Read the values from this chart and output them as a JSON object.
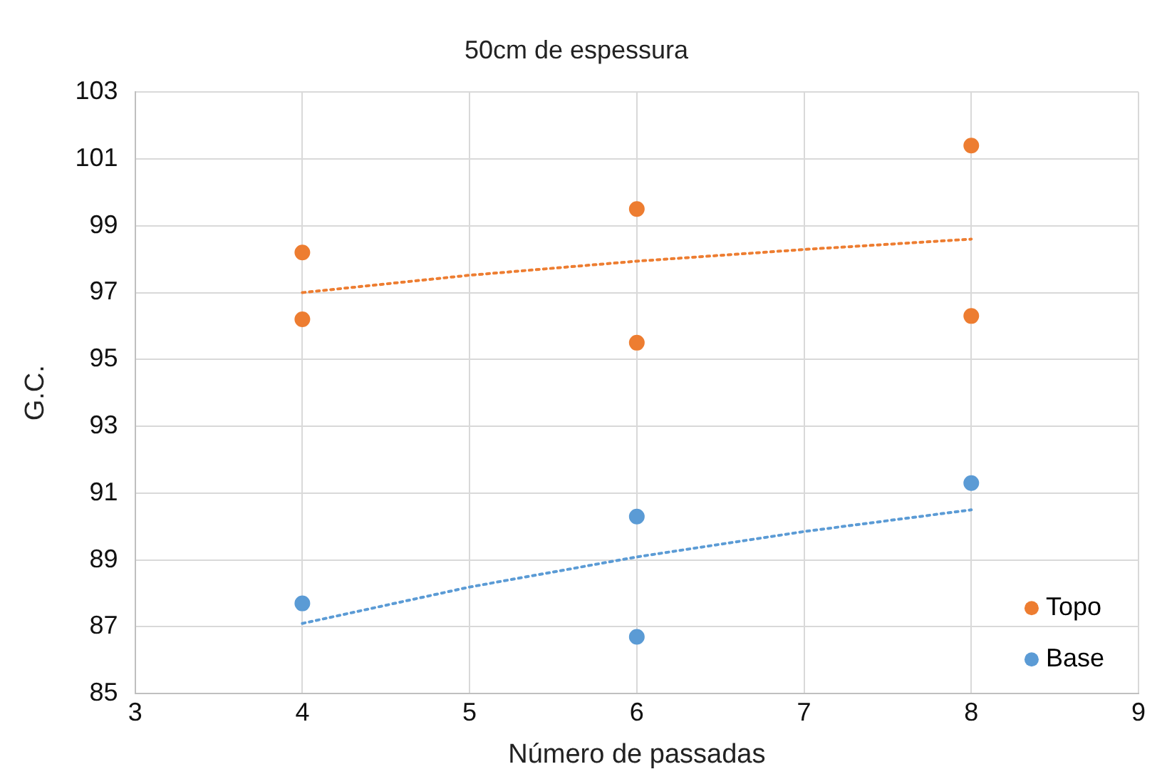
{
  "chart_data": {
    "type": "scatter",
    "title": "50cm de espessura",
    "xlabel": "Número de passadas",
    "ylabel": "G.C.",
    "xlim": [
      3,
      9
    ],
    "xticks": [
      3,
      4,
      5,
      6,
      7,
      8,
      9
    ],
    "ylim": [
      85,
      103
    ],
    "yticks": [
      85,
      87,
      89,
      91,
      93,
      95,
      97,
      99,
      101,
      103
    ],
    "grid": true,
    "legend": "bottom right",
    "marker": "circle",
    "series": [
      {
        "name": "Topo",
        "color": "#ed7d31",
        "x": [
          4,
          4,
          6,
          6,
          8,
          8
        ],
        "values": [
          98.2,
          96.2,
          99.5,
          95.5,
          101.4,
          96.3
        ]
      },
      {
        "name": "Base",
        "color": "#5b9bd5",
        "x": [
          4,
          6,
          6,
          8
        ],
        "values": [
          87.7,
          90.3,
          86.7,
          91.3
        ]
      },
      {
        "type": "line",
        "color": "#ed7d31",
        "line_style": "dotted",
        "marker": "none",
        "x": [
          4,
          5,
          6,
          7,
          8
        ],
        "values": [
          97.0,
          97.52,
          97.94,
          98.29,
          98.6
        ]
      },
      {
        "type": "line",
        "color": "#5b9bd5",
        "line_style": "dotted",
        "marker": "none",
        "x": [
          4,
          5,
          6,
          7,
          8
        ],
        "values": [
          87.1,
          88.19,
          89.09,
          89.85,
          90.5
        ]
      }
    ]
  }
}
